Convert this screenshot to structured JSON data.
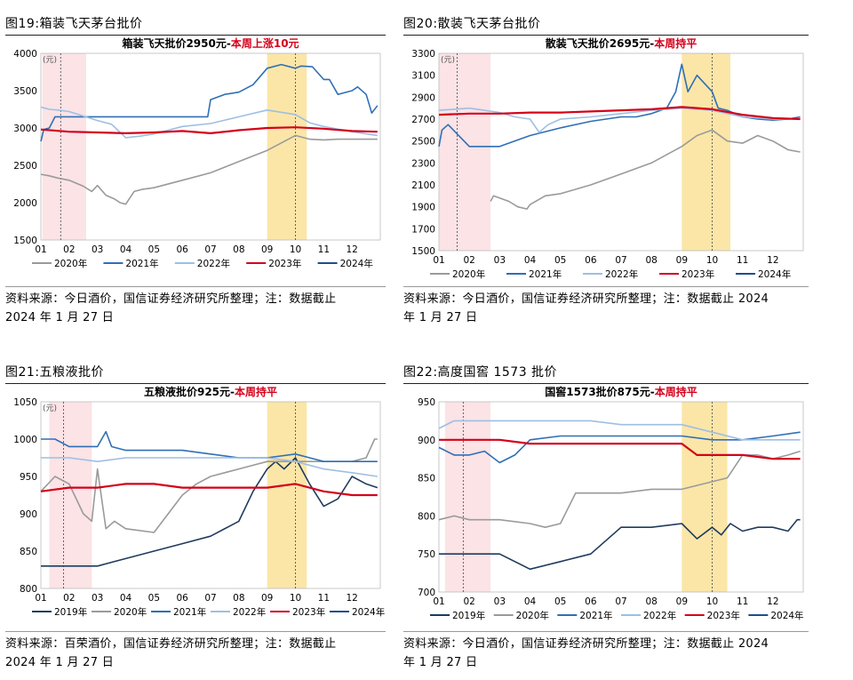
{
  "figures": [
    {
      "num": "图19:",
      "name": "箱装飞天茅台批价"
    },
    {
      "num": "图20:",
      "name": "散装飞天茅台批价"
    },
    {
      "num": "图21:",
      "name": "五粮液批价"
    },
    {
      "num": "图22:",
      "name": "高度国窖 1573 批价"
    }
  ],
  "sources": [
    {
      "line1": "资料来源：今日酒价，国信证券经济研究所整理；注：数据截止",
      "line2": "2024 年 1 月 27 日"
    },
    {
      "line1": "资料来源：今日酒价，国信证券经济研究所整理；注：数据截止 2024",
      "line2": "年 1 月 27 日"
    },
    {
      "line1": "资料来源：百荣酒价，国信证券经济研究所整理；注：数据截止",
      "line2": "2024 年 1 月 27 日"
    },
    {
      "line1": "资料来源：今日酒价，国信证券经济研究所整理；注：数据截止 2024",
      "line2": "年 1 月 27 日"
    }
  ],
  "colors": {
    "y2019": "#1f3b5c",
    "y2020": "#9a9a9a",
    "y2021": "#2f6fb5",
    "y2022": "#9dbfe3",
    "y2023": "#d4001a",
    "y2024": "#1e4e8c",
    "pink_band": "#fbe3e6",
    "yellow_band": "#fbe6a8"
  },
  "chart_data": [
    {
      "type": "line",
      "title": "箱装飞天批价2950元-",
      "title_highlight": "本周上涨10元",
      "unit_label": "(元)",
      "categories": [
        "01",
        "02",
        "03",
        "04",
        "05",
        "06",
        "07",
        "08",
        "09",
        "10",
        "11",
        "12"
      ],
      "ylim": [
        1500,
        4000
      ],
      "yticks": [
        1500,
        2000,
        2500,
        3000,
        3500,
        4000
      ],
      "shaded_bands": [
        {
          "color": "pink",
          "from": 0.05,
          "to": 1.6
        },
        {
          "color": "yellow",
          "from": 8.0,
          "to": 9.4
        }
      ],
      "dashed_lines": [
        0.7,
        9.0
      ],
      "series": [
        {
          "name": "2020年",
          "color_key": "y2020",
          "x": [
            0,
            0.3,
            0.6,
            1,
            1.5,
            1.8,
            2.0,
            2.3,
            2.6,
            2.8,
            3.0,
            3.3,
            3.6,
            4,
            5,
            6,
            7,
            8,
            8.5,
            9,
            9.5,
            10,
            10.5,
            11,
            11.5,
            11.9
          ],
          "values": [
            2380,
            2360,
            2330,
            2300,
            2220,
            2150,
            2230,
            2100,
            2050,
            2000,
            1980,
            2150,
            2180,
            2200,
            2300,
            2400,
            2550,
            2700,
            2800,
            2900,
            2850,
            2840,
            2850,
            2850,
            2850,
            2850
          ]
        },
        {
          "name": "2021年",
          "color_key": "y2021",
          "x": [
            0,
            0.1,
            0.3,
            0.5,
            1,
            1.5,
            2,
            3,
            4,
            5,
            5.5,
            5.9,
            6,
            6.5,
            7,
            7.5,
            8,
            8.5,
            9,
            9.2,
            9.6,
            10,
            10.2,
            10.5,
            11,
            11.2,
            11.5,
            11.7,
            11.9
          ],
          "values": [
            2820,
            2980,
            3000,
            3150,
            3150,
            3150,
            3150,
            3150,
            3150,
            3150,
            3150,
            3150,
            3380,
            3450,
            3480,
            3580,
            3800,
            3850,
            3800,
            3830,
            3820,
            3650,
            3650,
            3450,
            3500,
            3550,
            3450,
            3200,
            3300
          ]
        },
        {
          "name": "2022年",
          "color_key": "y2022",
          "x": [
            0,
            0.3,
            0.6,
            1,
            2,
            2.5,
            3,
            3.5,
            4,
            5,
            6,
            7,
            8,
            9,
            9.5,
            10,
            11,
            11.9
          ],
          "values": [
            3280,
            3250,
            3240,
            3220,
            3100,
            3050,
            2870,
            2890,
            2920,
            3020,
            3060,
            3150,
            3240,
            3180,
            3070,
            3020,
            2950,
            2900
          ]
        },
        {
          "name": "2023年",
          "color_key": "y2023",
          "x": [
            0,
            1,
            2,
            3,
            4,
            5,
            6,
            7,
            8,
            9,
            10,
            11,
            11.9
          ],
          "values": [
            2980,
            2950,
            2940,
            2930,
            2940,
            2960,
            2930,
            2970,
            3000,
            3010,
            2990,
            2960,
            2950
          ]
        }
      ],
      "legend": [
        "2020年",
        "2021年",
        "2022年",
        "2023年",
        "2024年"
      ],
      "legend_keys": [
        "y2020",
        "y2021",
        "y2022",
        "y2023",
        "y2024"
      ]
    },
    {
      "type": "line",
      "title": "散装飞天批价2695元-",
      "title_highlight": "本周持平",
      "unit_label": "(元)",
      "categories": [
        "01",
        "02",
        "03",
        "04",
        "05",
        "06",
        "07",
        "08",
        "09",
        "10",
        "11",
        "12"
      ],
      "ylim": [
        1500,
        3300
      ],
      "yticks": [
        1500,
        1700,
        1900,
        2100,
        2300,
        2500,
        2700,
        2900,
        3100,
        3300
      ],
      "ytick_labels": [
        "1500",
        "1700",
        "1900",
        "2100",
        "2300",
        "2500",
        "2700",
        "2900",
        "3100",
        "3300"
      ],
      "shaded_bands": [
        {
          "color": "pink",
          "from": 0.0,
          "to": 1.7
        },
        {
          "color": "yellow",
          "from": 8.0,
          "to": 9.6
        }
      ],
      "dashed_lines": [
        0.6,
        9.0
      ],
      "series": [
        {
          "name": "2020年",
          "color_key": "y2020",
          "x": [
            1.7,
            1.8,
            2.0,
            2.3,
            2.6,
            2.9,
            3,
            3.5,
            4,
            5,
            6,
            7,
            8,
            8.5,
            9,
            9.5,
            10,
            10.5,
            11,
            11.5,
            11.9
          ],
          "values": [
            1950,
            2000,
            1980,
            1950,
            1900,
            1880,
            1920,
            2000,
            2020,
            2100,
            2200,
            2300,
            2450,
            2550,
            2600,
            2500,
            2480,
            2550,
            2500,
            2420,
            2400
          ]
        },
        {
          "name": "2021年",
          "color_key": "y2021",
          "x": [
            0,
            0.1,
            0.3,
            1,
            2,
            3,
            4,
            5,
            6,
            6.5,
            7,
            7.5,
            7.8,
            8,
            8.2,
            8.5,
            9,
            9.2,
            9.5,
            10,
            10.5,
            11,
            11.5,
            11.9
          ],
          "values": [
            2450,
            2600,
            2650,
            2450,
            2450,
            2550,
            2620,
            2680,
            2720,
            2720,
            2750,
            2800,
            2950,
            3200,
            2950,
            3100,
            2950,
            2800,
            2780,
            2720,
            2700,
            2690,
            2700,
            2720
          ]
        },
        {
          "name": "2022年",
          "color_key": "y2022",
          "x": [
            0,
            0.5,
            1,
            2,
            2.5,
            3,
            3.3,
            3.6,
            4,
            5,
            6,
            7,
            8,
            9,
            10,
            11,
            11.9
          ],
          "values": [
            2780,
            2790,
            2800,
            2760,
            2720,
            2700,
            2580,
            2650,
            2700,
            2720,
            2750,
            2780,
            2800,
            2780,
            2720,
            2700,
            2700
          ]
        },
        {
          "name": "2023年",
          "color_key": "y2023",
          "x": [
            0,
            1,
            2,
            3,
            4,
            5,
            6,
            7,
            8,
            9,
            10,
            11,
            11.9
          ],
          "values": [
            2740,
            2750,
            2750,
            2760,
            2760,
            2770,
            2780,
            2790,
            2810,
            2790,
            2740,
            2710,
            2700
          ]
        }
      ],
      "legend": [
        "2020年",
        "2021年",
        "2022年",
        "2023年",
        "2024年"
      ],
      "legend_keys": [
        "y2020",
        "y2021",
        "y2022",
        "y2023",
        "y2024"
      ]
    },
    {
      "type": "line",
      "title": "五粮液批价925元-",
      "title_highlight": "本周持平",
      "unit_label": "(元)",
      "categories": [
        "01",
        "02",
        "03",
        "04",
        "05",
        "06",
        "07",
        "08",
        "09",
        "10",
        "11",
        "12"
      ],
      "ylim": [
        800,
        1050
      ],
      "yticks": [
        800,
        850,
        900,
        950,
        1000,
        1050
      ],
      "shaded_bands": [
        {
          "color": "pink",
          "from": 0.3,
          "to": 1.8
        },
        {
          "color": "yellow",
          "from": 8.0,
          "to": 9.4
        }
      ],
      "dashed_lines": [
        0.8,
        9.0
      ],
      "series": [
        {
          "name": "2019年",
          "color_key": "y2019",
          "x": [
            0,
            1,
            2,
            3,
            4,
            5,
            6,
            7,
            7.5,
            8,
            8.3,
            8.6,
            9,
            9.5,
            10,
            10.5,
            11,
            11.5,
            11.9
          ],
          "values": [
            830,
            830,
            830,
            840,
            850,
            860,
            870,
            890,
            930,
            960,
            970,
            960,
            975,
            940,
            910,
            920,
            950,
            940,
            935
          ]
        },
        {
          "name": "2020年",
          "color_key": "y2020",
          "x": [
            0,
            0.5,
            1,
            1.5,
            1.8,
            2,
            2.3,
            2.6,
            3,
            4,
            4.5,
            5,
            5.5,
            6,
            7,
            7.5,
            8,
            9,
            10,
            11,
            11.5,
            11.8,
            11.9
          ],
          "values": [
            930,
            950,
            940,
            900,
            890,
            960,
            880,
            890,
            880,
            875,
            900,
            925,
            940,
            950,
            960,
            965,
            970,
            970,
            970,
            970,
            975,
            1000,
            1000
          ]
        },
        {
          "name": "2021年",
          "color_key": "y2021",
          "x": [
            0,
            0.5,
            1,
            1.5,
            2,
            2.3,
            2.5,
            3,
            4,
            5,
            6,
            7,
            8,
            9,
            9.5,
            10,
            11,
            11.9
          ],
          "values": [
            1000,
            1000,
            990,
            990,
            990,
            1010,
            990,
            985,
            985,
            985,
            980,
            975,
            975,
            980,
            975,
            970,
            970,
            970
          ]
        },
        {
          "name": "2022年",
          "color_key": "y2022",
          "x": [
            0,
            1,
            2,
            3,
            4,
            5,
            6,
            7,
            8,
            9,
            10,
            11,
            11.9
          ],
          "values": [
            975,
            975,
            970,
            975,
            975,
            975,
            975,
            975,
            975,
            970,
            960,
            955,
            950
          ]
        },
        {
          "name": "2023年",
          "color_key": "y2023",
          "x": [
            0,
            1,
            2,
            3,
            4,
            5,
            6,
            7,
            8,
            9,
            10,
            11,
            11.9
          ],
          "values": [
            930,
            935,
            935,
            940,
            940,
            935,
            935,
            935,
            935,
            940,
            930,
            925,
            925
          ]
        }
      ],
      "legend": [
        "2019年",
        "2020年",
        "2021年",
        "2022年",
        "2023年",
        "2024年"
      ],
      "legend_keys": [
        "y2019",
        "y2020",
        "y2021",
        "y2022",
        "y2023",
        "y2024"
      ]
    },
    {
      "type": "line",
      "title": "国窖1573批价875元-",
      "title_highlight": "本周持平",
      "unit_label": "",
      "categories": [
        "01",
        "02",
        "03",
        "04",
        "05",
        "06",
        "07",
        "08",
        "09",
        "10",
        "11",
        "12"
      ],
      "ylim": [
        700,
        950
      ],
      "yticks": [
        700,
        750,
        800,
        850,
        900,
        950
      ],
      "ytick_labels": [
        "700",
        "750",
        "800",
        "850",
        "900",
        "950"
      ],
      "shaded_bands": [
        {
          "color": "pink",
          "from": 0.2,
          "to": 1.7
        },
        {
          "color": "yellow",
          "from": 8.0,
          "to": 9.5
        }
      ],
      "dashed_lines": [
        0.8,
        9.0
      ],
      "series": [
        {
          "name": "2019年",
          "color_key": "y2019",
          "x": [
            0,
            1,
            2,
            3,
            4,
            5,
            6,
            7,
            8,
            8.5,
            9,
            9.3,
            9.6,
            10,
            10.5,
            11,
            11.5,
            11.8,
            11.9
          ],
          "values": [
            750,
            750,
            750,
            730,
            740,
            750,
            785,
            785,
            790,
            770,
            785,
            775,
            790,
            780,
            785,
            785,
            780,
            795,
            795
          ]
        },
        {
          "name": "2020年",
          "color_key": "y2020",
          "x": [
            0,
            0.5,
            1,
            2,
            3,
            3.5,
            4,
            4.5,
            5,
            6,
            7,
            8,
            9,
            9.5,
            10,
            10.5,
            11,
            11.5,
            11.9
          ],
          "values": [
            795,
            800,
            795,
            795,
            790,
            785,
            790,
            830,
            830,
            830,
            835,
            835,
            845,
            850,
            880,
            880,
            875,
            880,
            885
          ]
        },
        {
          "name": "2021年",
          "color_key": "y2021",
          "x": [
            0,
            0.5,
            1,
            1.5,
            2,
            2.5,
            3,
            4,
            5,
            6,
            7,
            8,
            9,
            10,
            11,
            11.9
          ],
          "values": [
            890,
            880,
            880,
            885,
            870,
            880,
            900,
            905,
            905,
            905,
            905,
            905,
            900,
            900,
            905,
            910
          ]
        },
        {
          "name": "2022年",
          "color_key": "y2022",
          "x": [
            0,
            0.5,
            1,
            2,
            3,
            4,
            5,
            6,
            7,
            8,
            9,
            10,
            11,
            11.9
          ],
          "values": [
            915,
            925,
            925,
            925,
            925,
            925,
            925,
            920,
            920,
            920,
            910,
            900,
            900,
            900
          ]
        },
        {
          "name": "2023年",
          "color_key": "y2023",
          "x": [
            0,
            1,
            2,
            3,
            4,
            5,
            6,
            7,
            8,
            8.5,
            9,
            10,
            11,
            11.9
          ],
          "values": [
            900,
            900,
            900,
            895,
            895,
            895,
            895,
            895,
            895,
            880,
            880,
            880,
            875,
            875
          ]
        }
      ],
      "legend": [
        "2019年",
        "2020年",
        "2021年",
        "2022年",
        "2023年",
        "2024年"
      ],
      "legend_keys": [
        "y2019",
        "y2020",
        "y2021",
        "y2022",
        "y2023",
        "y2024"
      ]
    }
  ]
}
